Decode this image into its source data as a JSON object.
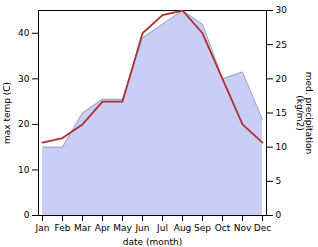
{
  "chart_data": {
    "type": "line",
    "xlabel": "date (month)",
    "ylabel": "max temp (C)",
    "y2label": "med. precipitation\n(kg/m2)",
    "categories": [
      "Jan",
      "Feb",
      "Mar",
      "Apr",
      "May",
      "Jun",
      "Jul",
      "Aug",
      "Sep",
      "Oct",
      "Nov",
      "Dec"
    ],
    "series": [
      {
        "type": "area",
        "axis": "y2",
        "color": "#c8cef5",
        "values": [
          10,
          10,
          15,
          17,
          17,
          26,
          28,
          30,
          28,
          20,
          21,
          14
        ]
      },
      {
        "type": "line",
        "color": "#b03030",
        "values": [
          16,
          17,
          20,
          25,
          25,
          40,
          44,
          45,
          40,
          30,
          20,
          16
        ]
      }
    ],
    "ylim": [
      0,
      45
    ],
    "yticks": [
      0,
      10,
      20,
      30,
      40
    ],
    "y2lim": [
      0,
      30
    ],
    "y2ticks": [
      0,
      5,
      10,
      15,
      20,
      25,
      30
    ]
  }
}
